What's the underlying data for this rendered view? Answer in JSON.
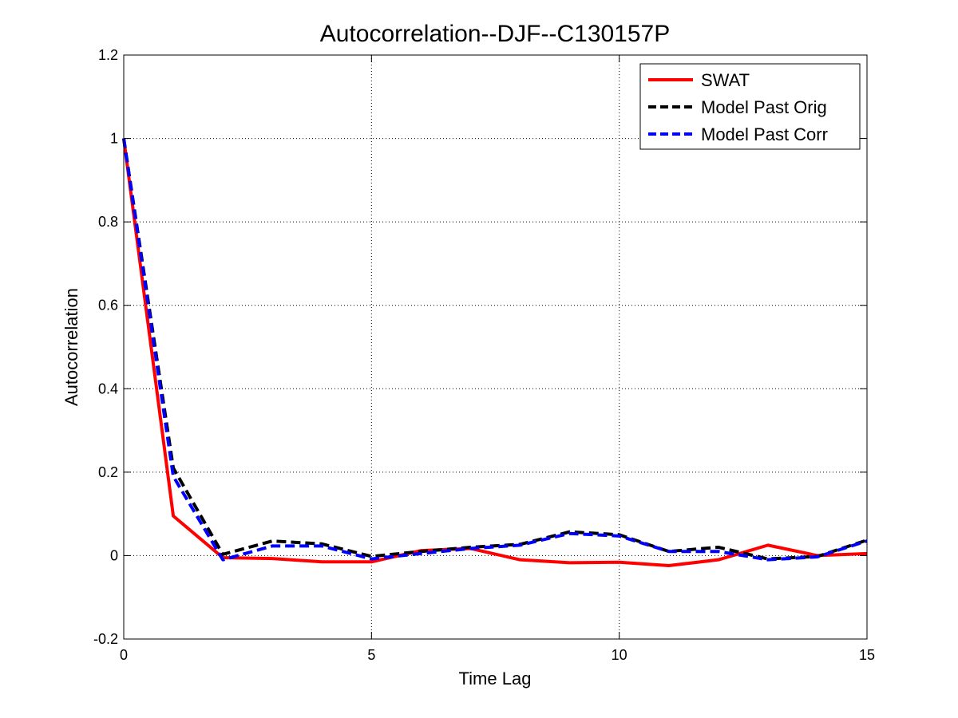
{
  "chart_data": {
    "type": "line",
    "title": "Autocorrelation--DJF--C130157P",
    "xlabel": "Time Lag",
    "ylabel": "Autocorrelation",
    "xlim": [
      0,
      15
    ],
    "ylim": [
      -0.2,
      1.2
    ],
    "xticks": [
      "0",
      "5",
      "10",
      "15"
    ],
    "xtick_values": [
      0,
      5,
      10,
      15
    ],
    "yticks": [
      "-0.2",
      "0",
      "0.2",
      "0.4",
      "0.6",
      "0.8",
      "1",
      "1.2"
    ],
    "ytick_values": [
      -0.2,
      0,
      0.2,
      0.4,
      0.6,
      0.8,
      1,
      1.2
    ],
    "grid": true,
    "legend_position": "top-right",
    "x": [
      0,
      1,
      2,
      3,
      4,
      5,
      6,
      7,
      8,
      9,
      10,
      11,
      12,
      13,
      14,
      15
    ],
    "series": [
      {
        "name": "SWAT",
        "color": "#ff0000",
        "style": "solid",
        "values": [
          1.0,
          0.095,
          -0.005,
          -0.007,
          -0.015,
          -0.015,
          0.012,
          0.017,
          -0.01,
          -0.017,
          -0.016,
          -0.024,
          -0.01,
          0.025,
          0.0,
          0.005
        ]
      },
      {
        "name": "Model Past Orig",
        "color": "#000000",
        "style": "dashed",
        "values": [
          1.0,
          0.21,
          0.003,
          0.035,
          0.028,
          -0.002,
          0.01,
          0.02,
          0.027,
          0.057,
          0.05,
          0.01,
          0.02,
          -0.008,
          -0.002,
          0.037
        ]
      },
      {
        "name": "Model Past Corr",
        "color": "#0000ff",
        "style": "dashed",
        "values": [
          1.0,
          0.19,
          -0.01,
          0.023,
          0.023,
          -0.008,
          0.005,
          0.017,
          0.025,
          0.053,
          0.047,
          0.01,
          0.01,
          -0.01,
          -0.003,
          0.035
        ]
      }
    ]
  }
}
